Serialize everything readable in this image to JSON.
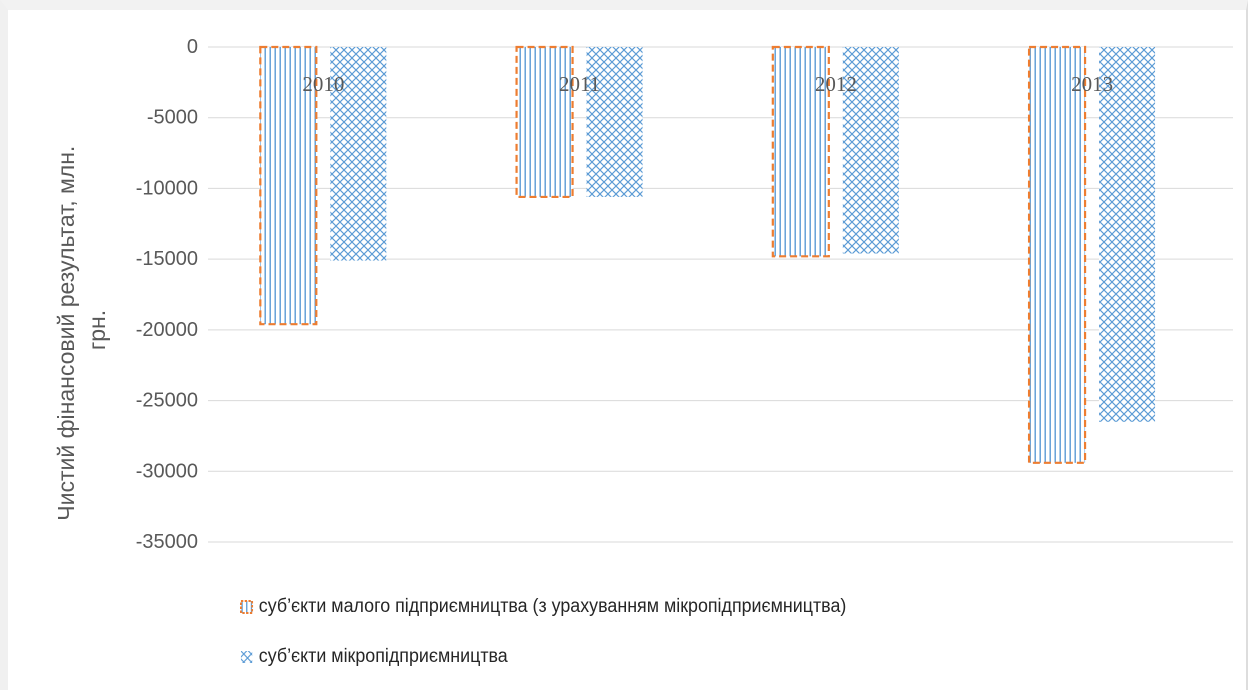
{
  "chart_data": {
    "type": "bar",
    "categories": [
      "2010",
      "2011",
      "2012",
      "2013"
    ],
    "series": [
      {
        "name": "суб’єкти малого підприємництва (з урахуванням мікропідприємництва)",
        "values": [
          -19600,
          -10600,
          -14800,
          -29400
        ],
        "color": "#5b9bd5",
        "border_color": "#ed7d31",
        "pattern": "vertical-lines"
      },
      {
        "name": "суб’єкти мікропідприємництва",
        "values": [
          -15100,
          -10600,
          -14600,
          -26500
        ],
        "color": "#5b9bd5",
        "pattern": "diagonal-cross"
      }
    ],
    "title": "",
    "xlabel": "",
    "ylabel": "Чистий фінансовий результат, млн. грн.",
    "ylabel_lines": [
      "Чистий фінансовий результат, млн.",
      "грн."
    ],
    "yticks": [
      "0",
      "-5000",
      "-10000",
      "-15000",
      "-20000",
      "-25000",
      "-30000",
      "-35000"
    ],
    "ylim": [
      -35000,
      0
    ],
    "grid": true,
    "legend_position": "bottom"
  }
}
